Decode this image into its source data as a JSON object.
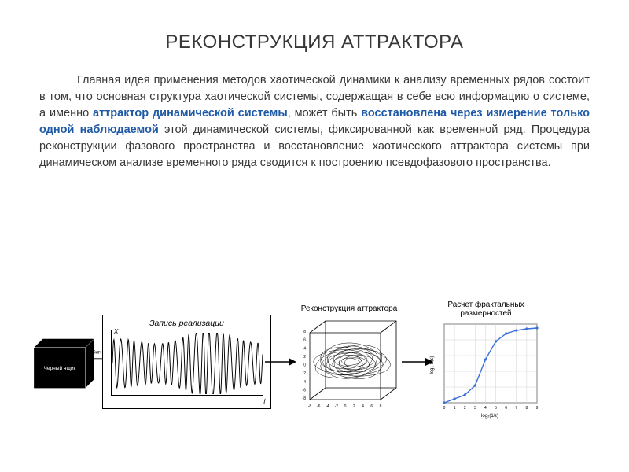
{
  "title": "РЕКОНСТРУКЦИЯ АТТРАКТОРА",
  "paragraph": {
    "pre": "Главная идея применения методов хаотической динамики к анализу временных рядов состоит в том, что основная структура хаотической системы, содержащая в себе всю информацию о системе, а именно ",
    "em1": "аттрактор динамической системы",
    "mid1": ", может быть ",
    "em2": "восстановлена через измерение только одной наблюдаемой",
    "mid2": " этой динамической системы, фиксированной как временной ряд. Процедура реконструкции фазового пространства и восстановление хаотического аттрактора системы при динамическом анализе временного ряда сводится к построению псевдофазового пространства."
  },
  "figures": {
    "blackbox": {
      "label_top": "Черный ящик",
      "signal_label": "Сигнал",
      "fill": "#000000",
      "stroke": "#ffffff"
    },
    "timeseries": {
      "caption": "Запись реализации",
      "ylabel": "x",
      "xlabel": "t",
      "axis_color": "#000000",
      "signal_color": "#000000",
      "cycles": 22,
      "amp_base": 0.9,
      "amp_jitter": 0.35
    },
    "attractor": {
      "caption": "Реконструкция аттрактора",
      "cube_stroke": "#000000",
      "spiral_stroke": "#000000",
      "ticks": [
        -8,
        -6,
        -4,
        -2,
        0,
        2,
        4,
        6,
        8
      ]
    },
    "fractal": {
      "caption": "Расчет фрактальных размерностей",
      "border_color": "#000000",
      "grid_color": "#d0d0d0",
      "curve_color": "#3a6fd8",
      "marker_color": "#3a6fd8",
      "xlabel": "log₂(1/ε)",
      "ylabel": "log₂ N(ε)",
      "points": [
        [
          0,
          0.0
        ],
        [
          1,
          0.05
        ],
        [
          2,
          0.1
        ],
        [
          3,
          0.22
        ],
        [
          4,
          0.55
        ],
        [
          5,
          0.78
        ],
        [
          6,
          0.88
        ],
        [
          7,
          0.92
        ],
        [
          8,
          0.94
        ],
        [
          9,
          0.95
        ]
      ],
      "xlim": [
        0,
        9
      ],
      "ylim": [
        0,
        1
      ]
    },
    "arrow_color": "#000000"
  },
  "colors": {
    "text": "#383838",
    "emphasis": "#1f5aa6",
    "background": "#ffffff"
  }
}
